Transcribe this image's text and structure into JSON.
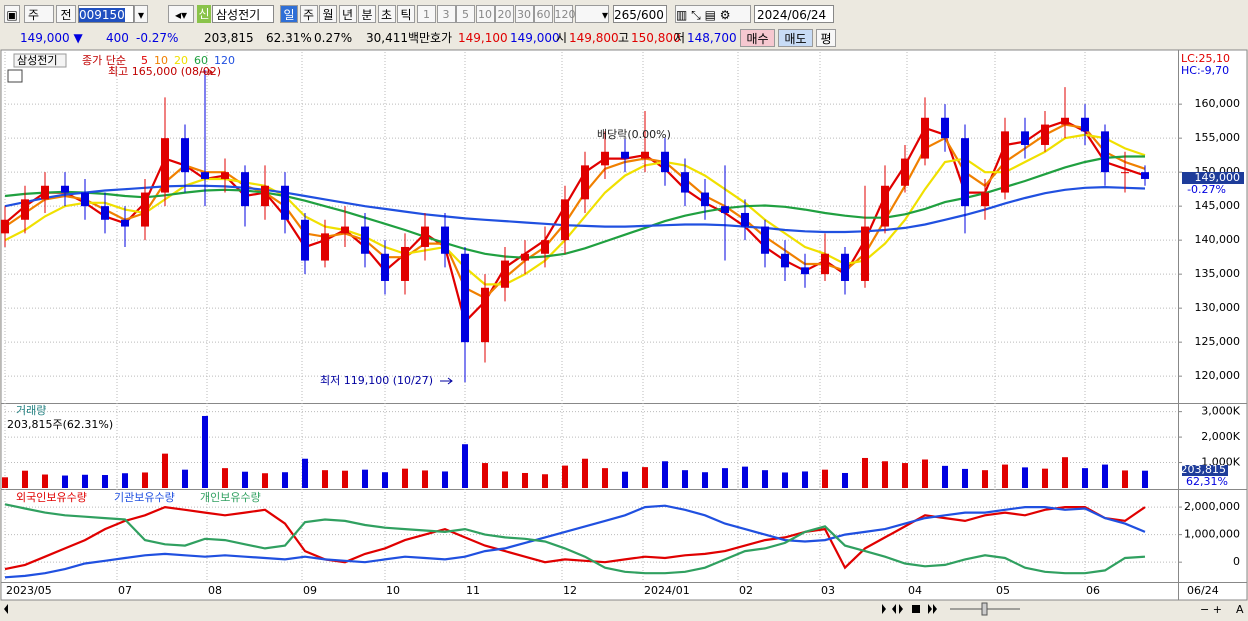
{
  "toolbar": {
    "view_mode": "주",
    "range": "전",
    "code": "009150",
    "new_badge": "신",
    "name": "삼성전기",
    "periods": [
      "일",
      "주",
      "월",
      "년",
      "분",
      "초",
      "틱"
    ],
    "intervals": [
      "1",
      "3",
      "5",
      "10",
      "20",
      "30",
      "60",
      "120"
    ],
    "count": "265/600",
    "date": "2024/06/24"
  },
  "info_bar": {
    "price": "149,000 ▼",
    "change": "400",
    "change_rate": "-0.27%",
    "volume": "203,815",
    "volume_rate": "62.31%",
    "turnover_rate": "0.27%",
    "amount": "30,411백만",
    "quote_label": "호가",
    "ask": "149,100",
    "bid": "149,000",
    "open_label": "시",
    "open": "149,800",
    "high_label": "고",
    "high": "150,800",
    "low_label": "저",
    "low": "148,700",
    "buy": "매수",
    "sell": "매도",
    "flat": "평"
  },
  "chart_data": [
    {
      "type": "candlestick",
      "legend_prefix": "삼성전기",
      "ma_label": "종가 단순",
      "up_color": "#e00000",
      "down_color": "#0000e0",
      "side_labels": [
        {
          "text": "LC:25,10",
          "color": "#e00000"
        },
        {
          "text": "HC:-9,70",
          "color": "#0000e0"
        }
      ],
      "last_value_label": "149,000",
      "last_change_label": "-0.27%",
      "annotations": [
        "최고 165,000 (08/02)",
        "최저 119,100 (10/27)",
        "배당락(0.00%)"
      ],
      "xlim": [
        0,
        58.65
      ],
      "xticks": [
        {
          "value": 0,
          "label": "2023/05"
        },
        {
          "value": 5.6,
          "label": "07"
        },
        {
          "value": 10.1,
          "label": "08"
        },
        {
          "value": 14.85,
          "label": "09"
        },
        {
          "value": 19,
          "label": "10"
        },
        {
          "value": 23,
          "label": "11"
        },
        {
          "value": 27.85,
          "label": "12"
        },
        {
          "value": 31.9,
          "label": "2024/01"
        },
        {
          "value": 36.65,
          "label": "02"
        },
        {
          "value": 40.75,
          "label": "03"
        },
        {
          "value": 45.1,
          "label": "04"
        },
        {
          "value": 49.5,
          "label": "05"
        },
        {
          "value": 54,
          "label": "06"
        }
      ],
      "x_end_label": "06/24",
      "ylim": [
        116200,
        166200
      ],
      "yticks": [
        {
          "value": 120000,
          "label": "120,000"
        },
        {
          "value": 125000,
          "label": "125,000"
        },
        {
          "value": 130000,
          "label": "130,000"
        },
        {
          "value": 135000,
          "label": "135,000"
        },
        {
          "value": 140000,
          "label": "140,000"
        },
        {
          "value": 145000,
          "label": "145,000"
        },
        {
          "value": 150000,
          "label": "150,000"
        },
        {
          "value": 155000,
          "label": "155,000"
        },
        {
          "value": 160000,
          "label": "160,000"
        }
      ],
      "grid": true,
      "open": [
        141000,
        143000,
        146000,
        148000,
        147000,
        145000,
        143000,
        142000,
        147000,
        155000,
        150000,
        149000,
        150000,
        145000,
        148000,
        143000,
        137000,
        141000,
        142000,
        138000,
        134000,
        139000,
        142000,
        138000,
        125000,
        133000,
        137000,
        138000,
        140000,
        146000,
        151000,
        153000,
        152000,
        153000,
        150000,
        147000,
        145000,
        144000,
        142000,
        138000,
        136000,
        135000,
        138000,
        134000,
        142000,
        148000,
        152000,
        158000,
        155000,
        145000,
        147000,
        156000,
        154000,
        157000,
        158000,
        156000,
        150000,
        150000
      ],
      "high": [
        145000,
        148000,
        150000,
        150000,
        149000,
        147000,
        145000,
        149000,
        161000,
        157000,
        165000,
        152000,
        151000,
        151000,
        150000,
        144000,
        143000,
        145000,
        144000,
        140000,
        141000,
        144000,
        144000,
        139000,
        135000,
        139000,
        140000,
        142000,
        148000,
        153000,
        156000,
        155000,
        159000,
        155000,
        152000,
        149000,
        151000,
        146000,
        143000,
        140000,
        138000,
        141000,
        139000,
        148000,
        151000,
        154000,
        161000,
        160000,
        157000,
        149000,
        158000,
        158000,
        159000,
        162500,
        160000,
        157000,
        153000,
        151000
      ],
      "low": [
        139000,
        141000,
        144000,
        145000,
        143000,
        141000,
        139000,
        140000,
        145000,
        147000,
        145000,
        147000,
        142000,
        143000,
        141000,
        135000,
        136000,
        139000,
        136000,
        132000,
        132000,
        137000,
        136000,
        119100,
        122000,
        131000,
        135000,
        136000,
        138000,
        144000,
        149000,
        150000,
        150000,
        148000,
        145000,
        143000,
        137000,
        140000,
        136000,
        134000,
        133000,
        134000,
        132000,
        133000,
        141000,
        147000,
        151000,
        153000,
        141000,
        143000,
        146000,
        152000,
        153000,
        155000,
        154000,
        148000,
        147000,
        148000
      ],
      "close": [
        143000,
        146000,
        148000,
        147000,
        145000,
        143000,
        142000,
        147000,
        155000,
        150000,
        149000,
        150000,
        145000,
        148000,
        143000,
        137000,
        141000,
        142000,
        138000,
        134000,
        139000,
        142000,
        138000,
        125000,
        133000,
        137000,
        138000,
        140000,
        146000,
        151000,
        153000,
        152000,
        153000,
        150000,
        147000,
        145000,
        144000,
        142000,
        138000,
        136000,
        135000,
        138000,
        134000,
        142000,
        148000,
        152000,
        158000,
        155000,
        145000,
        147000,
        156000,
        154000,
        157000,
        158000,
        156000,
        150000,
        150000,
        149000
      ],
      "series": [
        {
          "name": "5",
          "color": "#e00000",
          "values": [
            142500,
            145000,
            147000,
            147000,
            145500,
            143500,
            142500,
            145500,
            152000,
            151000,
            149000,
            149500,
            146500,
            147000,
            143500,
            139000,
            140000,
            141500,
            139000,
            135500,
            138000,
            141000,
            139000,
            128000,
            131000,
            136000,
            138000,
            140000,
            145000,
            150000,
            152000,
            152000,
            152500,
            150500,
            147500,
            145500,
            144000,
            142000,
            139000,
            137000,
            135500,
            137000,
            135000,
            140000,
            146500,
            151000,
            156500,
            155500,
            147000,
            147000,
            154000,
            154500,
            156500,
            157500,
            156000,
            151500,
            150500,
            149500
          ]
        },
        {
          "name": "10",
          "color": "#f08000",
          "values": [
            142000,
            144000,
            146000,
            146500,
            146000,
            144500,
            143000,
            144000,
            148500,
            151000,
            150000,
            150000,
            148000,
            147000,
            145000,
            141000,
            140500,
            141000,
            140000,
            137500,
            137500,
            139500,
            139500,
            133000,
            131500,
            134500,
            137000,
            139000,
            142500,
            147000,
            150500,
            151500,
            152000,
            151500,
            149000,
            146500,
            145000,
            143000,
            140500,
            138500,
            136500,
            136500,
            135500,
            138000,
            143000,
            148000,
            153500,
            155000,
            150000,
            148000,
            151500,
            153500,
            155500,
            157000,
            156500,
            153000,
            151500,
            150500
          ]
        },
        {
          "name": "20",
          "color": "#f0e000",
          "values": [
            140000,
            141500,
            143500,
            145000,
            145500,
            145500,
            144500,
            144000,
            146000,
            148000,
            149000,
            149000,
            148500,
            148000,
            146500,
            143500,
            142000,
            141500,
            140500,
            139000,
            138000,
            138500,
            139000,
            136000,
            133500,
            133500,
            135000,
            137000,
            140000,
            143500,
            147000,
            149500,
            151000,
            151500,
            151000,
            149500,
            147500,
            145500,
            143000,
            141000,
            139000,
            138000,
            136500,
            137000,
            139500,
            143000,
            147500,
            151500,
            152000,
            150000,
            150000,
            151500,
            153000,
            155000,
            155500,
            155000,
            153500,
            152500
          ]
        },
        {
          "name": "60",
          "color": "#20a040",
          "values": [
            146500,
            146800,
            147000,
            147100,
            147000,
            146800,
            146500,
            146300,
            146600,
            147000,
            147300,
            147400,
            147300,
            147000,
            146500,
            145800,
            145000,
            144200,
            143300,
            142400,
            141500,
            140500,
            139600,
            138700,
            138000,
            137600,
            137400,
            137600,
            138000,
            138800,
            139800,
            140800,
            141800,
            142800,
            143600,
            144200,
            144700,
            145000,
            145100,
            144900,
            144500,
            144000,
            143600,
            143300,
            143300,
            143800,
            144600,
            145600,
            146200,
            146900,
            147800,
            148700,
            149700,
            150700,
            151500,
            152100,
            152300,
            152300
          ]
        },
        {
          "name": "120",
          "color": "#2050e0",
          "values": [
            145000,
            145600,
            146200,
            146700,
            147000,
            147300,
            147500,
            147700,
            147900,
            148000,
            148000,
            147900,
            147700,
            147400,
            147000,
            146500,
            146000,
            145500,
            145000,
            144600,
            144200,
            143800,
            143500,
            143200,
            143000,
            142800,
            142600,
            142400,
            142200,
            142100,
            142000,
            142000,
            142100,
            142200,
            142300,
            142300,
            142200,
            142000,
            141800,
            141500,
            141300,
            141200,
            141200,
            141300,
            141500,
            141800,
            142300,
            143000,
            143700,
            144500,
            145400,
            146200,
            146900,
            147400,
            147700,
            147800,
            147700,
            147600
          ]
        }
      ]
    },
    {
      "type": "bar",
      "title": "거래량",
      "subtitle": "203,815주(62.31%)",
      "last_value_label": "203,815",
      "last_rate_label": "62,31%",
      "ylim": [
        0,
        3300
      ],
      "yticks": [
        {
          "value": 1000,
          "label": "1,000K"
        },
        {
          "value": 2000,
          "label": "2,000K"
        },
        {
          "value": 3000,
          "label": "3,000K"
        }
      ],
      "values": [
        420,
        680,
        530,
        490,
        520,
        510,
        580,
        610,
        1350,
        720,
        2830,
        780,
        640,
        580,
        620,
        1150,
        700,
        680,
        720,
        620,
        760,
        690,
        650,
        1720,
        980,
        650,
        590,
        540,
        880,
        1150,
        780,
        640,
        820,
        1050,
        700,
        620,
        780,
        840,
        700,
        610,
        650,
        720,
        590,
        1180,
        1050,
        980,
        1120,
        870,
        750,
        700,
        920,
        810,
        760,
        1210,
        780,
        920,
        690,
        680
      ]
    },
    {
      "type": "line",
      "ylim": [
        -720000,
        2620000
      ],
      "yticks": [
        0,
        {
          "value": 1000000,
          "label": "1,000,000"
        },
        {
          "value": 2000000,
          "label": "2,000,000"
        }
      ],
      "series": [
        {
          "name": "외국인보유수량",
          "color": "#e00000",
          "values": [
            -250000,
            -100000,
            200000,
            500000,
            800000,
            1200000,
            1500000,
            1700000,
            2000000,
            1900000,
            1800000,
            1700000,
            1800000,
            1900000,
            1400000,
            400000,
            100000,
            0,
            300000,
            500000,
            800000,
            1000000,
            1200000,
            900000,
            600000,
            400000,
            200000,
            0,
            100000,
            50000,
            0,
            100000,
            200000,
            150000,
            250000,
            300000,
            400000,
            600000,
            800000,
            900000,
            1100000,
            1200000,
            -200000,
            500000,
            900000,
            1300000,
            1700000,
            1600000,
            1500000,
            1700000,
            1800000,
            1700000,
            1900000,
            2000000,
            2000000,
            1600000,
            1500000,
            2000000
          ]
        },
        {
          "name": "기관보유수량",
          "color": "#2050e0",
          "values": [
            -550000,
            -500000,
            -400000,
            -250000,
            -50000,
            50000,
            150000,
            250000,
            300000,
            250000,
            200000,
            250000,
            200000,
            150000,
            100000,
            200000,
            100000,
            50000,
            0,
            100000,
            200000,
            150000,
            100000,
            200000,
            400000,
            500000,
            700000,
            900000,
            1100000,
            1300000,
            1500000,
            1700000,
            2000000,
            2050000,
            1900000,
            1700000,
            1400000,
            1200000,
            1000000,
            800000,
            750000,
            800000,
            1000000,
            1100000,
            1200000,
            1400000,
            1600000,
            1700000,
            1800000,
            1800000,
            1900000,
            2000000,
            2000000,
            1900000,
            1950000,
            1600000,
            1400000,
            1100000
          ]
        },
        {
          "name": "개인보유수량",
          "color": "#30a060",
          "values": [
            2100000,
            1950000,
            1800000,
            1700000,
            1650000,
            1600000,
            1550000,
            800000,
            650000,
            600000,
            850000,
            800000,
            650000,
            500000,
            600000,
            1450000,
            1550000,
            1500000,
            1350000,
            1250000,
            1200000,
            1150000,
            1100000,
            1200000,
            1000000,
            900000,
            850000,
            750000,
            500000,
            200000,
            -200000,
            -350000,
            -400000,
            -400000,
            -350000,
            -200000,
            100000,
            400000,
            500000,
            700000,
            1100000,
            1300000,
            600000,
            400000,
            200000,
            -50000,
            -150000,
            -100000,
            100000,
            250000,
            150000,
            -200000,
            -350000,
            -400000,
            -400000,
            -300000,
            150000,
            200000
          ]
        }
      ]
    }
  ]
}
